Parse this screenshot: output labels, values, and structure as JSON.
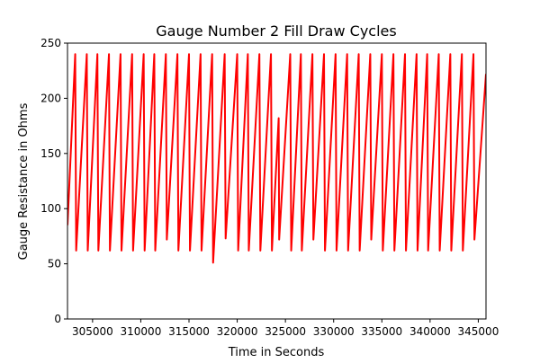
{
  "chart_data": {
    "type": "line",
    "title": "Gauge Number 2 Fill Draw Cycles",
    "xlabel": "Time in Seconds",
    "ylabel": "Gauge Resistance in Ohms",
    "xlim": [
      302400,
      345800
    ],
    "ylim": [
      0,
      250
    ],
    "xticks": [
      305000,
      310000,
      315000,
      320000,
      325000,
      330000,
      335000,
      340000,
      345000
    ],
    "yticks": [
      0,
      50,
      100,
      150,
      200,
      250
    ],
    "grid": false,
    "legend": "none",
    "series": [
      {
        "color": "#ff0000",
        "points": [
          [
            302400,
            85
          ],
          [
            303200,
            240
          ],
          [
            303300,
            62
          ],
          [
            304400,
            240
          ],
          [
            304500,
            62
          ],
          [
            305500,
            240
          ],
          [
            305600,
            62
          ],
          [
            306700,
            240
          ],
          [
            306800,
            62
          ],
          [
            307900,
            240
          ],
          [
            308000,
            62
          ],
          [
            309100,
            240
          ],
          [
            309200,
            62
          ],
          [
            310300,
            240
          ],
          [
            310400,
            62
          ],
          [
            311400,
            240
          ],
          [
            311500,
            62
          ],
          [
            312600,
            240
          ],
          [
            312700,
            72
          ],
          [
            313800,
            240
          ],
          [
            313900,
            62
          ],
          [
            315000,
            240
          ],
          [
            315100,
            62
          ],
          [
            316200,
            240
          ],
          [
            316300,
            62
          ],
          [
            317400,
            240
          ],
          [
            317500,
            51
          ],
          [
            318700,
            240
          ],
          [
            318800,
            73
          ],
          [
            320000,
            240
          ],
          [
            320100,
            62
          ],
          [
            321100,
            240
          ],
          [
            321200,
            62
          ],
          [
            322300,
            240
          ],
          [
            322400,
            62
          ],
          [
            323500,
            240
          ],
          [
            323600,
            62
          ],
          [
            324300,
            182
          ],
          [
            324350,
            72
          ],
          [
            325500,
            240
          ],
          [
            325600,
            62
          ],
          [
            326600,
            240
          ],
          [
            326700,
            62
          ],
          [
            327800,
            240
          ],
          [
            327900,
            72
          ],
          [
            329000,
            240
          ],
          [
            329100,
            62
          ],
          [
            330200,
            240
          ],
          [
            330300,
            62
          ],
          [
            331400,
            240
          ],
          [
            331500,
            62
          ],
          [
            332600,
            240
          ],
          [
            332700,
            62
          ],
          [
            333800,
            240
          ],
          [
            333900,
            72
          ],
          [
            335000,
            240
          ],
          [
            335100,
            62
          ],
          [
            336200,
            240
          ],
          [
            336300,
            62
          ],
          [
            337400,
            240
          ],
          [
            337500,
            62
          ],
          [
            338600,
            240
          ],
          [
            338700,
            62
          ],
          [
            339700,
            240
          ],
          [
            339800,
            62
          ],
          [
            340900,
            240
          ],
          [
            341000,
            62
          ],
          [
            342100,
            240
          ],
          [
            342200,
            62
          ],
          [
            343300,
            240
          ],
          [
            343400,
            62
          ],
          [
            344500,
            240
          ],
          [
            344600,
            72
          ],
          [
            345800,
            222
          ]
        ]
      }
    ]
  }
}
